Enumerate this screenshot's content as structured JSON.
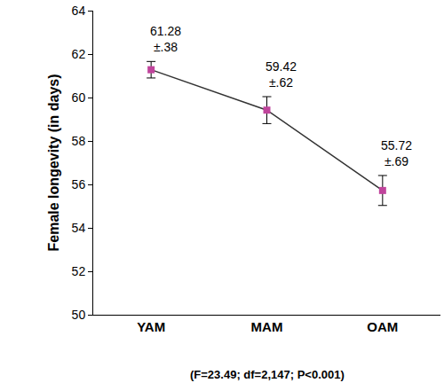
{
  "chart_data": {
    "type": "line",
    "y_label": "Female longevity (in days)",
    "categories": [
      "YAM",
      "MAM",
      "OAM"
    ],
    "values": [
      61.28,
      59.42,
      55.72
    ],
    "errors": [
      0.38,
      0.62,
      0.69
    ],
    "error_labels": [
      "±.38",
      "±.62",
      "±.69"
    ],
    "data_labels": true,
    "color": "#c0449c",
    "marker": "square",
    "ylim": [
      50,
      64
    ],
    "yticks": [
      50,
      52,
      54,
      56,
      58,
      60,
      62,
      64
    ],
    "grid": false,
    "annotations": [
      "(F=23.49; df=2,147; P<0.001)"
    ]
  }
}
